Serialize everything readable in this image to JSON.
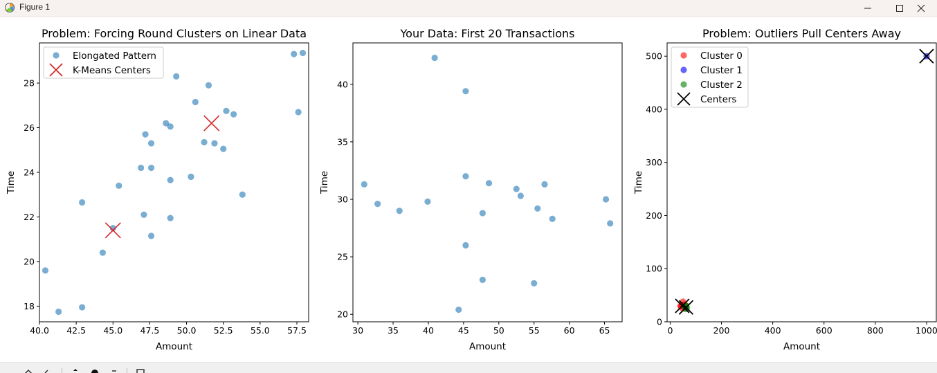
{
  "window": {
    "title": "Figure 1",
    "icons": [
      "matplotlib-figure-icon",
      "minimize-icon",
      "maximize-icon",
      "close-icon"
    ]
  },
  "toolbar": {
    "icons": [
      "home-icon",
      "back-icon",
      "forward-icon",
      "pan-icon",
      "zoom-icon",
      "configure-icon",
      "save-icon"
    ]
  },
  "chart_data": [
    {
      "type": "scatter",
      "title": "Problem: Forcing Round Clusters on Linear Data",
      "xlabel": "Amount",
      "ylabel": "Time",
      "xlim": [
        40.0,
        58.3
      ],
      "ylim": [
        17.3,
        29.8
      ],
      "xticks": [
        40.0,
        42.5,
        45.0,
        47.5,
        50.0,
        52.5,
        55.0,
        57.5
      ],
      "xtick_labels": [
        "40.0",
        "42.5",
        "45.0",
        "47.5",
        "50.0",
        "52.5",
        "55.0",
        "57.5"
      ],
      "yticks": [
        18,
        20,
        22,
        24,
        26,
        28
      ],
      "ytick_labels": [
        "18",
        "20",
        "22",
        "24",
        "26",
        "28"
      ],
      "grid": false,
      "legend_position": "upper left",
      "series": [
        {
          "name": "Elongated Pattern",
          "marker": "circle",
          "color": "#1f77b4",
          "points": [
            [
              40.4,
              19.6
            ],
            [
              41.3,
              17.75
            ],
            [
              42.9,
              17.95
            ],
            [
              42.9,
              22.65
            ],
            [
              44.3,
              20.4
            ],
            [
              45.0,
              21.5
            ],
            [
              45.4,
              23.4
            ],
            [
              46.9,
              24.2
            ],
            [
              47.1,
              22.1
            ],
            [
              47.2,
              25.7
            ],
            [
              47.6,
              25.3
            ],
            [
              47.6,
              24.2
            ],
            [
              47.6,
              21.15
            ],
            [
              48.6,
              26.2
            ],
            [
              48.9,
              26.05
            ],
            [
              48.9,
              23.65
            ],
            [
              48.9,
              21.95
            ],
            [
              49.3,
              28.3
            ],
            [
              50.3,
              23.8
            ],
            [
              50.6,
              27.15
            ],
            [
              51.2,
              25.35
            ],
            [
              51.5,
              27.9
            ],
            [
              51.9,
              25.3
            ],
            [
              52.5,
              25.05
            ],
            [
              52.7,
              26.75
            ],
            [
              53.2,
              26.6
            ],
            [
              53.8,
              23.0
            ],
            [
              57.3,
              29.3
            ],
            [
              57.6,
              26.7
            ],
            [
              57.9,
              29.35
            ]
          ]
        },
        {
          "name": "K-Means Centers",
          "marker": "x",
          "color": "#d62728",
          "points": [
            [
              45.0,
              21.4
            ],
            [
              51.7,
              26.2
            ]
          ]
        }
      ]
    },
    {
      "type": "scatter",
      "title": "Your Data: First 20 Transactions",
      "xlabel": "Amount",
      "ylabel": "Time",
      "xlim": [
        29.3,
        67.5
      ],
      "ylim": [
        19.35,
        43.6
      ],
      "xticks": [
        30,
        35,
        40,
        45,
        50,
        55,
        60,
        65
      ],
      "xtick_labels": [
        "30",
        "35",
        "40",
        "45",
        "50",
        "55",
        "60",
        "65"
      ],
      "yticks": [
        20,
        25,
        30,
        35,
        40
      ],
      "ytick_labels": [
        "20",
        "25",
        "30",
        "35",
        "40"
      ],
      "grid": false,
      "series": [
        {
          "name": "",
          "marker": "circle",
          "color": "#1f77b4",
          "points": [
            [
              30.9,
              31.3
            ],
            [
              32.8,
              29.6
            ],
            [
              35.9,
              29.0
            ],
            [
              39.9,
              29.8
            ],
            [
              40.9,
              42.3
            ],
            [
              44.3,
              20.4
            ],
            [
              45.3,
              39.4
            ],
            [
              45.3,
              32.0
            ],
            [
              45.3,
              26.0
            ],
            [
              47.7,
              28.8
            ],
            [
              47.7,
              23.0
            ],
            [
              48.6,
              31.4
            ],
            [
              52.5,
              30.9
            ],
            [
              53.1,
              30.3
            ],
            [
              55.0,
              22.7
            ],
            [
              55.5,
              29.2
            ],
            [
              56.5,
              31.3
            ],
            [
              57.6,
              28.3
            ],
            [
              65.2,
              30.0
            ],
            [
              65.8,
              27.9
            ]
          ]
        }
      ]
    },
    {
      "type": "scatter",
      "title": "Problem: Outliers Pull Centers Away",
      "xlabel": "Amount",
      "ylabel": "Time",
      "xlim": [
        -12,
        1038
      ],
      "ylim": [
        0,
        525
      ],
      "xticks": [
        0,
        200,
        400,
        600,
        800,
        1000
      ],
      "xtick_labels": [
        "0",
        "200",
        "400",
        "600",
        "800",
        "1000"
      ],
      "yticks": [
        0,
        100,
        200,
        300,
        400,
        500
      ],
      "ytick_labels": [
        "0",
        "100",
        "200",
        "300",
        "400",
        "500"
      ],
      "grid": false,
      "legend_position": "upper left",
      "series": [
        {
          "name": "Cluster 0",
          "marker": "circle",
          "color": "#ff0000",
          "alpha": 0.6,
          "points": [
            [
              40,
              30
            ],
            [
              45,
              32
            ],
            [
              50,
              38
            ],
            [
              52,
              28
            ],
            [
              48,
              25
            ],
            [
              55,
              33
            ],
            [
              42,
              29
            ],
            [
              60,
              31
            ]
          ]
        },
        {
          "name": "Cluster 1",
          "marker": "circle",
          "color": "#0000ff",
          "alpha": 0.6,
          "points": [
            [
              1000,
              500
            ]
          ]
        },
        {
          "name": "Cluster 2",
          "marker": "circle",
          "color": "#008000",
          "alpha": 0.6,
          "points": [
            [
              58,
              27
            ],
            [
              62,
              29
            ],
            [
              65,
              26
            ],
            [
              60,
              24
            ],
            [
              63,
              30
            ]
          ]
        },
        {
          "name": "Centers",
          "marker": "x",
          "color": "#000000",
          "points": [
            [
              47,
              30
            ],
            [
              62,
              27
            ],
            [
              1000,
              500
            ]
          ]
        }
      ]
    }
  ]
}
